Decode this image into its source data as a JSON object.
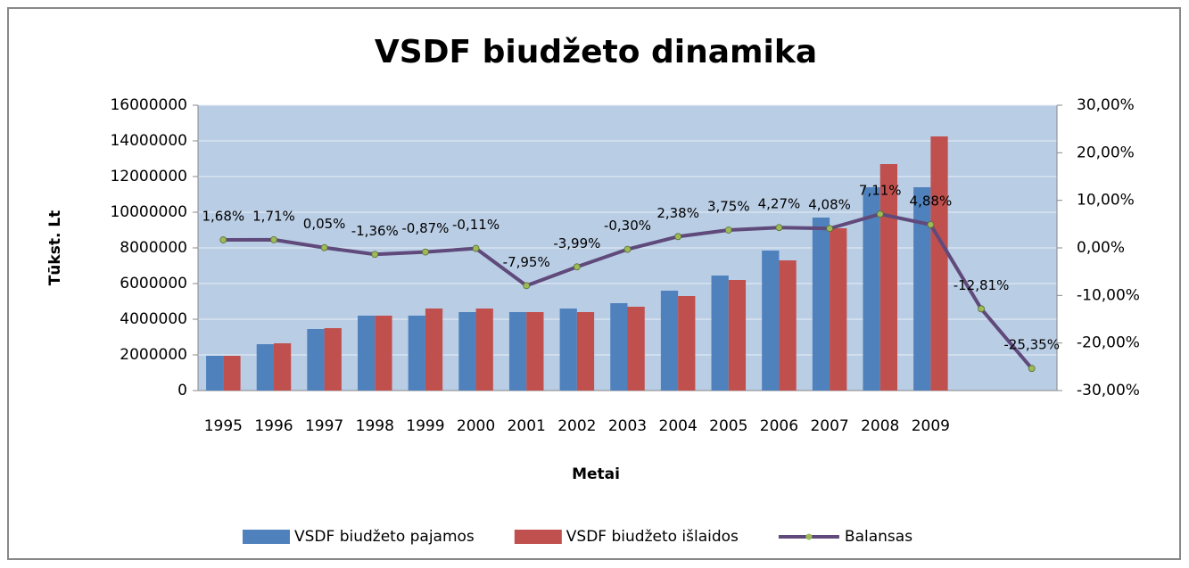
{
  "chart_data": {
    "type": "bar",
    "title": "VSDF biudžeto dinamika",
    "x_label": "Metai",
    "y_label": "Tūkst. Lt",
    "categories": [
      "1995",
      "1996",
      "1997",
      "1998",
      "1999",
      "2000",
      "2001",
      "2002",
      "2003",
      "2004",
      "2005",
      "2006",
      "2007",
      "2008",
      "2009",
      null,
      null
    ],
    "series": [
      {
        "name": "VSDF biudžeto pajamos",
        "color": "#4f81bd",
        "axis": "y",
        "values": [
          1950000,
          2600000,
          3450000,
          4200000,
          4200000,
          4400000,
          4400000,
          4600000,
          4900000,
          5600000,
          6450000,
          7850000,
          9700000,
          11400000,
          11400000,
          null,
          null
        ]
      },
      {
        "name": "VSDF biudžeto išlaidos",
        "color": "#c0504d",
        "axis": "y",
        "values": [
          1950000,
          2650000,
          3500000,
          4200000,
          4600000,
          4600000,
          4400000,
          4400000,
          4700000,
          5300000,
          6200000,
          7300000,
          9100000,
          12700000,
          14250000,
          null,
          null
        ]
      },
      {
        "name": "Balansas",
        "color": "#604a7b",
        "marker_color": "#9bbb59",
        "type": "line",
        "axis": "y2",
        "values": [
          1.68,
          1.71,
          0.05,
          -1.36,
          -0.87,
          -0.11,
          -7.95,
          -3.99,
          -0.3,
          2.38,
          3.75,
          4.27,
          4.08,
          7.11,
          4.88,
          -12.81,
          -25.35
        ],
        "value_labels": [
          "1,68%",
          "1,71%",
          "0,05%",
          "-1,36%",
          "-0,87%",
          "-0,11%",
          "-7,95%",
          "-3,99%",
          "-0,30%",
          "2,38%",
          "3,75%",
          "4,27%",
          "4,08%",
          "7,11%",
          "4,88%",
          "-12,81%",
          "-25,35%"
        ]
      }
    ],
    "ylim": [
      0,
      16000000
    ],
    "yticks": [
      0,
      2000000,
      4000000,
      6000000,
      8000000,
      10000000,
      12000000,
      14000000,
      16000000
    ],
    "y2lim": [
      -30,
      30
    ],
    "y2ticks": [
      {
        "value": -30,
        "label": "-30,00%"
      },
      {
        "value": -20,
        "label": "-20,00%"
      },
      {
        "value": -10,
        "label": "-10,00%"
      },
      {
        "value": 0,
        "label": "0,00%"
      },
      {
        "value": 10,
        "label": "10,00%"
      },
      {
        "value": 20,
        "label": "20,00%"
      },
      {
        "value": 30,
        "label": "30,00%"
      }
    ],
    "grid": true,
    "plot_background": "#b9cde5",
    "legend": "bottom"
  }
}
